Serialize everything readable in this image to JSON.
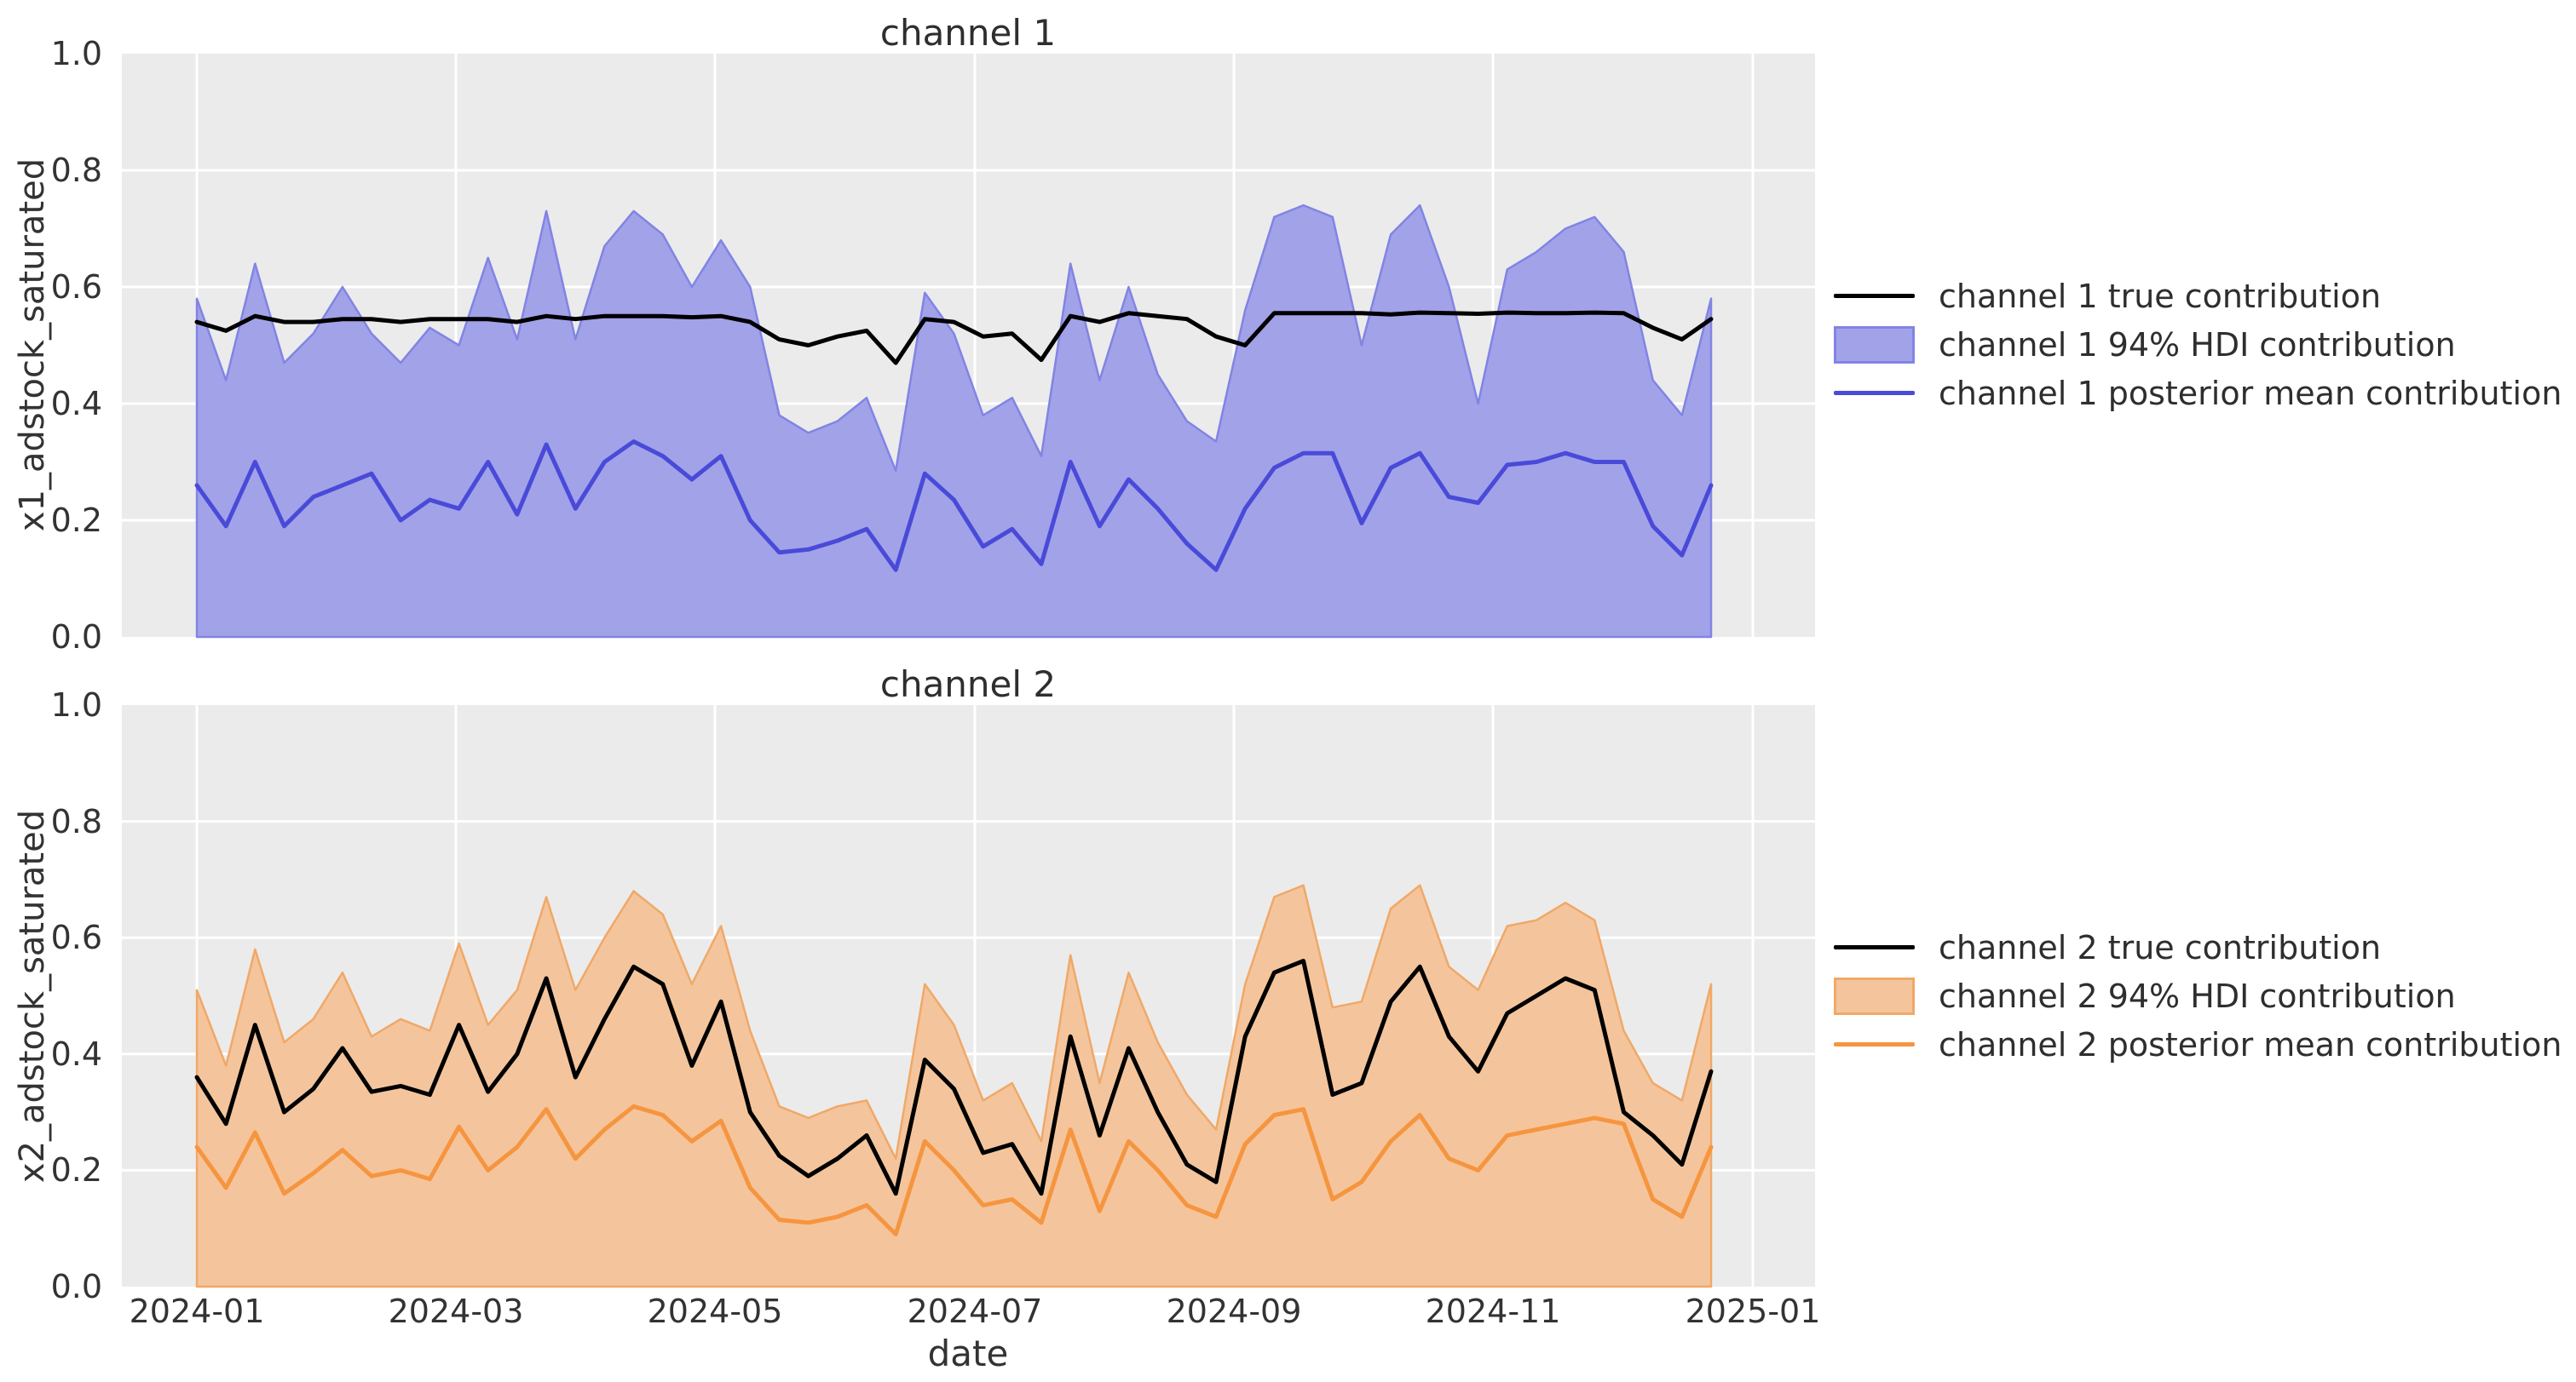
{
  "figure": {
    "xlabel": "date",
    "background_color": "#ffffff",
    "axes_background_color": "#ebebeb",
    "grid_color": "#ffffff",
    "text_color": "#2e2e2e"
  },
  "chart_data": [
    {
      "type": "line",
      "title": "channel 1",
      "ylabel": "x1_adstock_saturated",
      "ylim": [
        0.0,
        1.0
      ],
      "ytick_labels": [
        "1.0",
        "0.8",
        "0.6",
        "0.4",
        "0.2",
        "0.0"
      ],
      "ytick_values": [
        1.0,
        0.8,
        0.6,
        0.4,
        0.2,
        0.0
      ],
      "x_start": "2024-01-01",
      "x_freq_days": 7,
      "n_points": 53,
      "xtick_labels": [
        "2024-01",
        "2024-03",
        "2024-05",
        "2024-07",
        "2024-09",
        "2024-11",
        "2025-01"
      ],
      "grid": true,
      "legend_position": "center right, outside axes",
      "series": [
        {
          "name": "channel 1 true contribution",
          "kind": "line",
          "color": "#000000",
          "values": [
            0.54,
            0.525,
            0.55,
            0.54,
            0.54,
            0.545,
            0.545,
            0.54,
            0.545,
            0.545,
            0.545,
            0.54,
            0.55,
            0.545,
            0.55,
            0.55,
            0.55,
            0.548,
            0.55,
            0.54,
            0.51,
            0.5,
            0.515,
            0.525,
            0.47,
            0.545,
            0.54,
            0.515,
            0.52,
            0.475,
            0.55,
            0.54,
            0.555,
            0.55,
            0.545,
            0.515,
            0.5,
            0.555,
            0.555,
            0.555,
            0.555,
            0.553,
            0.556,
            0.555,
            0.554,
            0.556,
            0.555,
            0.555,
            0.556,
            0.555,
            0.53,
            0.51,
            0.545
          ]
        },
        {
          "name": "channel 1 94% HDI contribution",
          "kind": "band",
          "fill_color": "#a2a2e8",
          "edge_color": "#8184e4",
          "lower": 0.0,
          "upper": [
            0.58,
            0.44,
            0.64,
            0.47,
            0.52,
            0.6,
            0.52,
            0.47,
            0.53,
            0.5,
            0.65,
            0.51,
            0.73,
            0.51,
            0.67,
            0.73,
            0.69,
            0.6,
            0.68,
            0.6,
            0.38,
            0.35,
            0.37,
            0.41,
            0.285,
            0.59,
            0.52,
            0.38,
            0.41,
            0.31,
            0.64,
            0.44,
            0.6,
            0.45,
            0.37,
            0.335,
            0.56,
            0.72,
            0.74,
            0.72,
            0.5,
            0.69,
            0.74,
            0.6,
            0.4,
            0.63,
            0.66,
            0.7,
            0.72,
            0.66,
            0.44,
            0.38,
            0.58
          ]
        },
        {
          "name": "channel 1 posterior mean contribution",
          "kind": "line",
          "color": "#4a4ad9",
          "values": [
            0.26,
            0.19,
            0.3,
            0.19,
            0.24,
            0.26,
            0.28,
            0.2,
            0.235,
            0.22,
            0.3,
            0.21,
            0.33,
            0.22,
            0.3,
            0.335,
            0.31,
            0.27,
            0.31,
            0.2,
            0.145,
            0.15,
            0.165,
            0.185,
            0.115,
            0.28,
            0.235,
            0.155,
            0.185,
            0.125,
            0.3,
            0.19,
            0.27,
            0.22,
            0.16,
            0.115,
            0.22,
            0.29,
            0.315,
            0.315,
            0.195,
            0.29,
            0.315,
            0.24,
            0.23,
            0.295,
            0.3,
            0.315,
            0.3,
            0.3,
            0.19,
            0.14,
            0.26
          ]
        }
      ]
    },
    {
      "type": "line",
      "title": "channel 2",
      "ylabel": "x2_adstock_saturated",
      "ylim": [
        0.0,
        1.0
      ],
      "ytick_labels": [
        "1.0",
        "0.8",
        "0.6",
        "0.4",
        "0.2",
        "0.0"
      ],
      "ytick_values": [
        1.0,
        0.8,
        0.6,
        0.4,
        0.2,
        0.0
      ],
      "x_start": "2024-01-01",
      "x_freq_days": 7,
      "n_points": 53,
      "xtick_labels": [
        "2024-01",
        "2024-03",
        "2024-05",
        "2024-07",
        "2024-09",
        "2024-11",
        "2025-01"
      ],
      "grid": true,
      "legend_position": "center right, outside axes",
      "series": [
        {
          "name": "channel 2 true contribution",
          "kind": "line",
          "color": "#000000",
          "values": [
            0.36,
            0.28,
            0.45,
            0.3,
            0.34,
            0.41,
            0.335,
            0.345,
            0.33,
            0.45,
            0.335,
            0.4,
            0.53,
            0.36,
            0.46,
            0.55,
            0.52,
            0.38,
            0.49,
            0.3,
            0.225,
            0.19,
            0.22,
            0.26,
            0.16,
            0.39,
            0.34,
            0.23,
            0.245,
            0.16,
            0.43,
            0.26,
            0.41,
            0.3,
            0.21,
            0.18,
            0.43,
            0.54,
            0.56,
            0.33,
            0.35,
            0.49,
            0.55,
            0.43,
            0.37,
            0.47,
            0.5,
            0.53,
            0.51,
            0.3,
            0.26,
            0.21,
            0.37
          ]
        },
        {
          "name": "channel 2 94% HDI contribution",
          "kind": "band",
          "fill_color": "#f4c59c",
          "edge_color": "#f0a868",
          "lower": 0.0,
          "upper": [
            0.51,
            0.38,
            0.58,
            0.42,
            0.46,
            0.54,
            0.43,
            0.46,
            0.44,
            0.59,
            0.45,
            0.51,
            0.67,
            0.51,
            0.6,
            0.68,
            0.64,
            0.52,
            0.62,
            0.44,
            0.31,
            0.29,
            0.31,
            0.32,
            0.22,
            0.52,
            0.45,
            0.32,
            0.35,
            0.25,
            0.57,
            0.35,
            0.54,
            0.42,
            0.33,
            0.27,
            0.52,
            0.67,
            0.69,
            0.48,
            0.49,
            0.65,
            0.69,
            0.55,
            0.51,
            0.62,
            0.63,
            0.66,
            0.63,
            0.44,
            0.35,
            0.32,
            0.52
          ]
        },
        {
          "name": "channel 2 posterior mean contribution",
          "kind": "line",
          "color": "#f6953f",
          "values": [
            0.24,
            0.17,
            0.265,
            0.16,
            0.195,
            0.235,
            0.19,
            0.2,
            0.185,
            0.275,
            0.2,
            0.24,
            0.305,
            0.22,
            0.27,
            0.31,
            0.295,
            0.25,
            0.285,
            0.17,
            0.115,
            0.11,
            0.12,
            0.14,
            0.09,
            0.25,
            0.2,
            0.14,
            0.15,
            0.11,
            0.27,
            0.13,
            0.25,
            0.2,
            0.14,
            0.12,
            0.245,
            0.295,
            0.305,
            0.15,
            0.18,
            0.25,
            0.295,
            0.22,
            0.2,
            0.26,
            0.27,
            0.28,
            0.29,
            0.28,
            0.15,
            0.12,
            0.24
          ]
        }
      ]
    }
  ]
}
